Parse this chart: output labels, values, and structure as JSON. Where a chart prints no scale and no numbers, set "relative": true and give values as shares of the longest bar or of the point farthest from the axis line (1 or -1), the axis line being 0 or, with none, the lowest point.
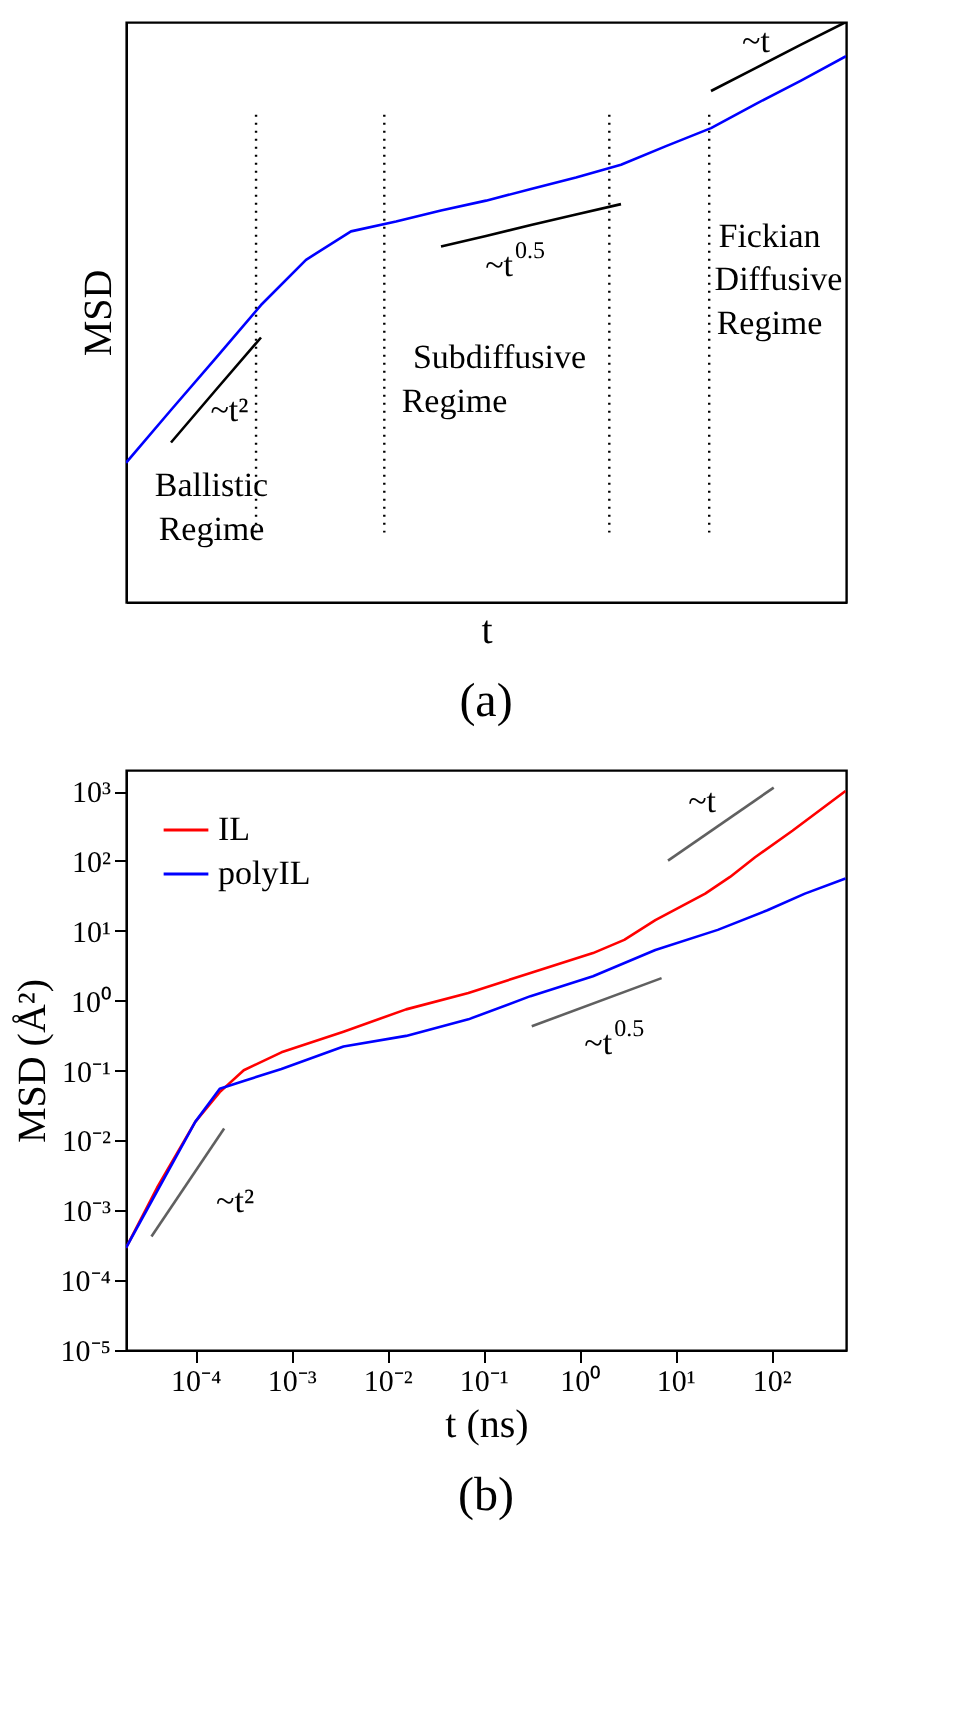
{
  "chart_data": [
    {
      "type": "line",
      "relative": true,
      "title": "(a)",
      "xlabel": "t",
      "ylabel": "MSD",
      "grid": false,
      "legend": false,
      "categories": [
        null,
        null,
        null,
        null,
        null,
        null,
        null,
        null,
        null,
        null,
        null,
        null,
        null,
        null,
        null,
        null,
        null
      ],
      "series": [
        {
          "color": "#0000ff",
          "values": [
            0.24,
            0.331,
            0.421,
            0.512,
            0.59,
            0.639,
            0.656,
            0.675,
            0.692,
            0.712,
            0.732,
            0.754,
            0.786,
            0.817,
            0.859,
            0.899,
            0.941
          ]
        },
        {
          "color": "#000000",
          "values": [
            null,
            0.275,
            0.366,
            0.456,
            null,
            null,
            null,
            null,
            null,
            null,
            null,
            null,
            null,
            null,
            null,
            null,
            null
          ]
        },
        {
          "color": "#000000",
          "values": [
            null,
            null,
            null,
            null,
            null,
            null,
            null,
            0.613,
            0.631,
            0.65,
            0.668,
            0.686,
            null,
            null,
            null,
            null,
            null
          ]
        },
        {
          "color": "#000000",
          "values": [
            null,
            null,
            null,
            null,
            null,
            null,
            null,
            null,
            null,
            null,
            null,
            null,
            null,
            0.881,
            0.921,
            0.961,
            1.0
          ]
        }
      ],
      "annotations": [
        "~t²",
        "~t$^{0.5}$",
        "~t",
        "Ballistic",
        "Regime",
        "Subdiffusive",
        "Regime",
        "Fickian",
        "Diffusive",
        "Regime"
      ]
    },
    {
      "type": "line",
      "title": "(b)",
      "xlabel": "t (ns)",
      "ylabel": "MSD (Å²)",
      "log": "xy",
      "grid": false,
      "legend": "top left",
      "xlim": [
        1.9e-05,
        600
      ],
      "ylim": [
        1e-05,
        2000
      ],
      "xticks": [
        {
          "value": 0.0001,
          "label": "10⁻⁴"
        },
        {
          "value": 0.001,
          "label": "10⁻³"
        },
        {
          "value": 0.01,
          "label": "10⁻²"
        },
        {
          "value": 0.1,
          "label": "10⁻¹"
        },
        {
          "value": 1,
          "label": "10⁰"
        },
        {
          "value": 10,
          "label": "10¹"
        },
        {
          "value": 100,
          "label": "10²"
        }
      ],
      "yticks": [
        {
          "value": 1e-05,
          "label": "10⁻⁵"
        },
        {
          "value": 0.0001,
          "label": "10⁻⁴"
        },
        {
          "value": 0.001,
          "label": "10⁻³"
        },
        {
          "value": 0.01,
          "label": "10⁻²"
        },
        {
          "value": 0.1,
          "label": "10⁻¹"
        },
        {
          "value": 1,
          "label": "10⁰"
        },
        {
          "value": 10,
          "label": "10¹"
        },
        {
          "value": 100,
          "label": "10²"
        },
        {
          "value": 1000,
          "label": "10³"
        }
      ],
      "series": [
        {
          "name": "IL",
          "color": "#ff0000",
          "x": [
            1.9e-05,
            4e-05,
            0.0001,
            0.00018,
            0.00032,
            0.00079,
            0.0035,
            0.0157,
            0.07,
            0.31,
            1.39,
            2.94,
            6.2,
            20.5,
            37.2,
            67.8,
            166,
            593
          ],
          "values": [
            0.00029,
            0.0021,
            0.0184,
            0.049,
            0.101,
            0.182,
            0.36,
            0.75,
            1.29,
            2.49,
            4.79,
            7.4,
            14.2,
            34,
            59,
            113,
            270,
            1000
          ]
        },
        {
          "name": "polyIL",
          "color": "#0000ff",
          "x": [
            1.9e-05,
            0.0001,
            0.00018,
            0.00032,
            0.00079,
            0.0035,
            0.0157,
            0.07,
            0.31,
            1.39,
            6.2,
            27.7,
            91,
            224,
            593
          ],
          "values": [
            0.00029,
            0.0184,
            0.055,
            0.071,
            0.105,
            0.22,
            0.313,
            0.54,
            1.16,
            2.23,
            5.3,
            10.3,
            19.7,
            34,
            56
          ]
        },
        {
          "color": "#606060",
          "x": [
            3.5e-05,
            0.0002
          ],
          "values": [
            0.00042,
            0.0148
          ]
        },
        {
          "color": "#606060",
          "x": [
            0.32,
            7.2
          ],
          "values": [
            0.43,
            2.1
          ]
        },
        {
          "color": "#606060",
          "x": [
            8.4,
            106
          ],
          "values": [
            101,
            1120
          ]
        }
      ],
      "annotations": [
        "~t²",
        "~t$^{0.5}$",
        "~t"
      ]
    }
  ]
}
